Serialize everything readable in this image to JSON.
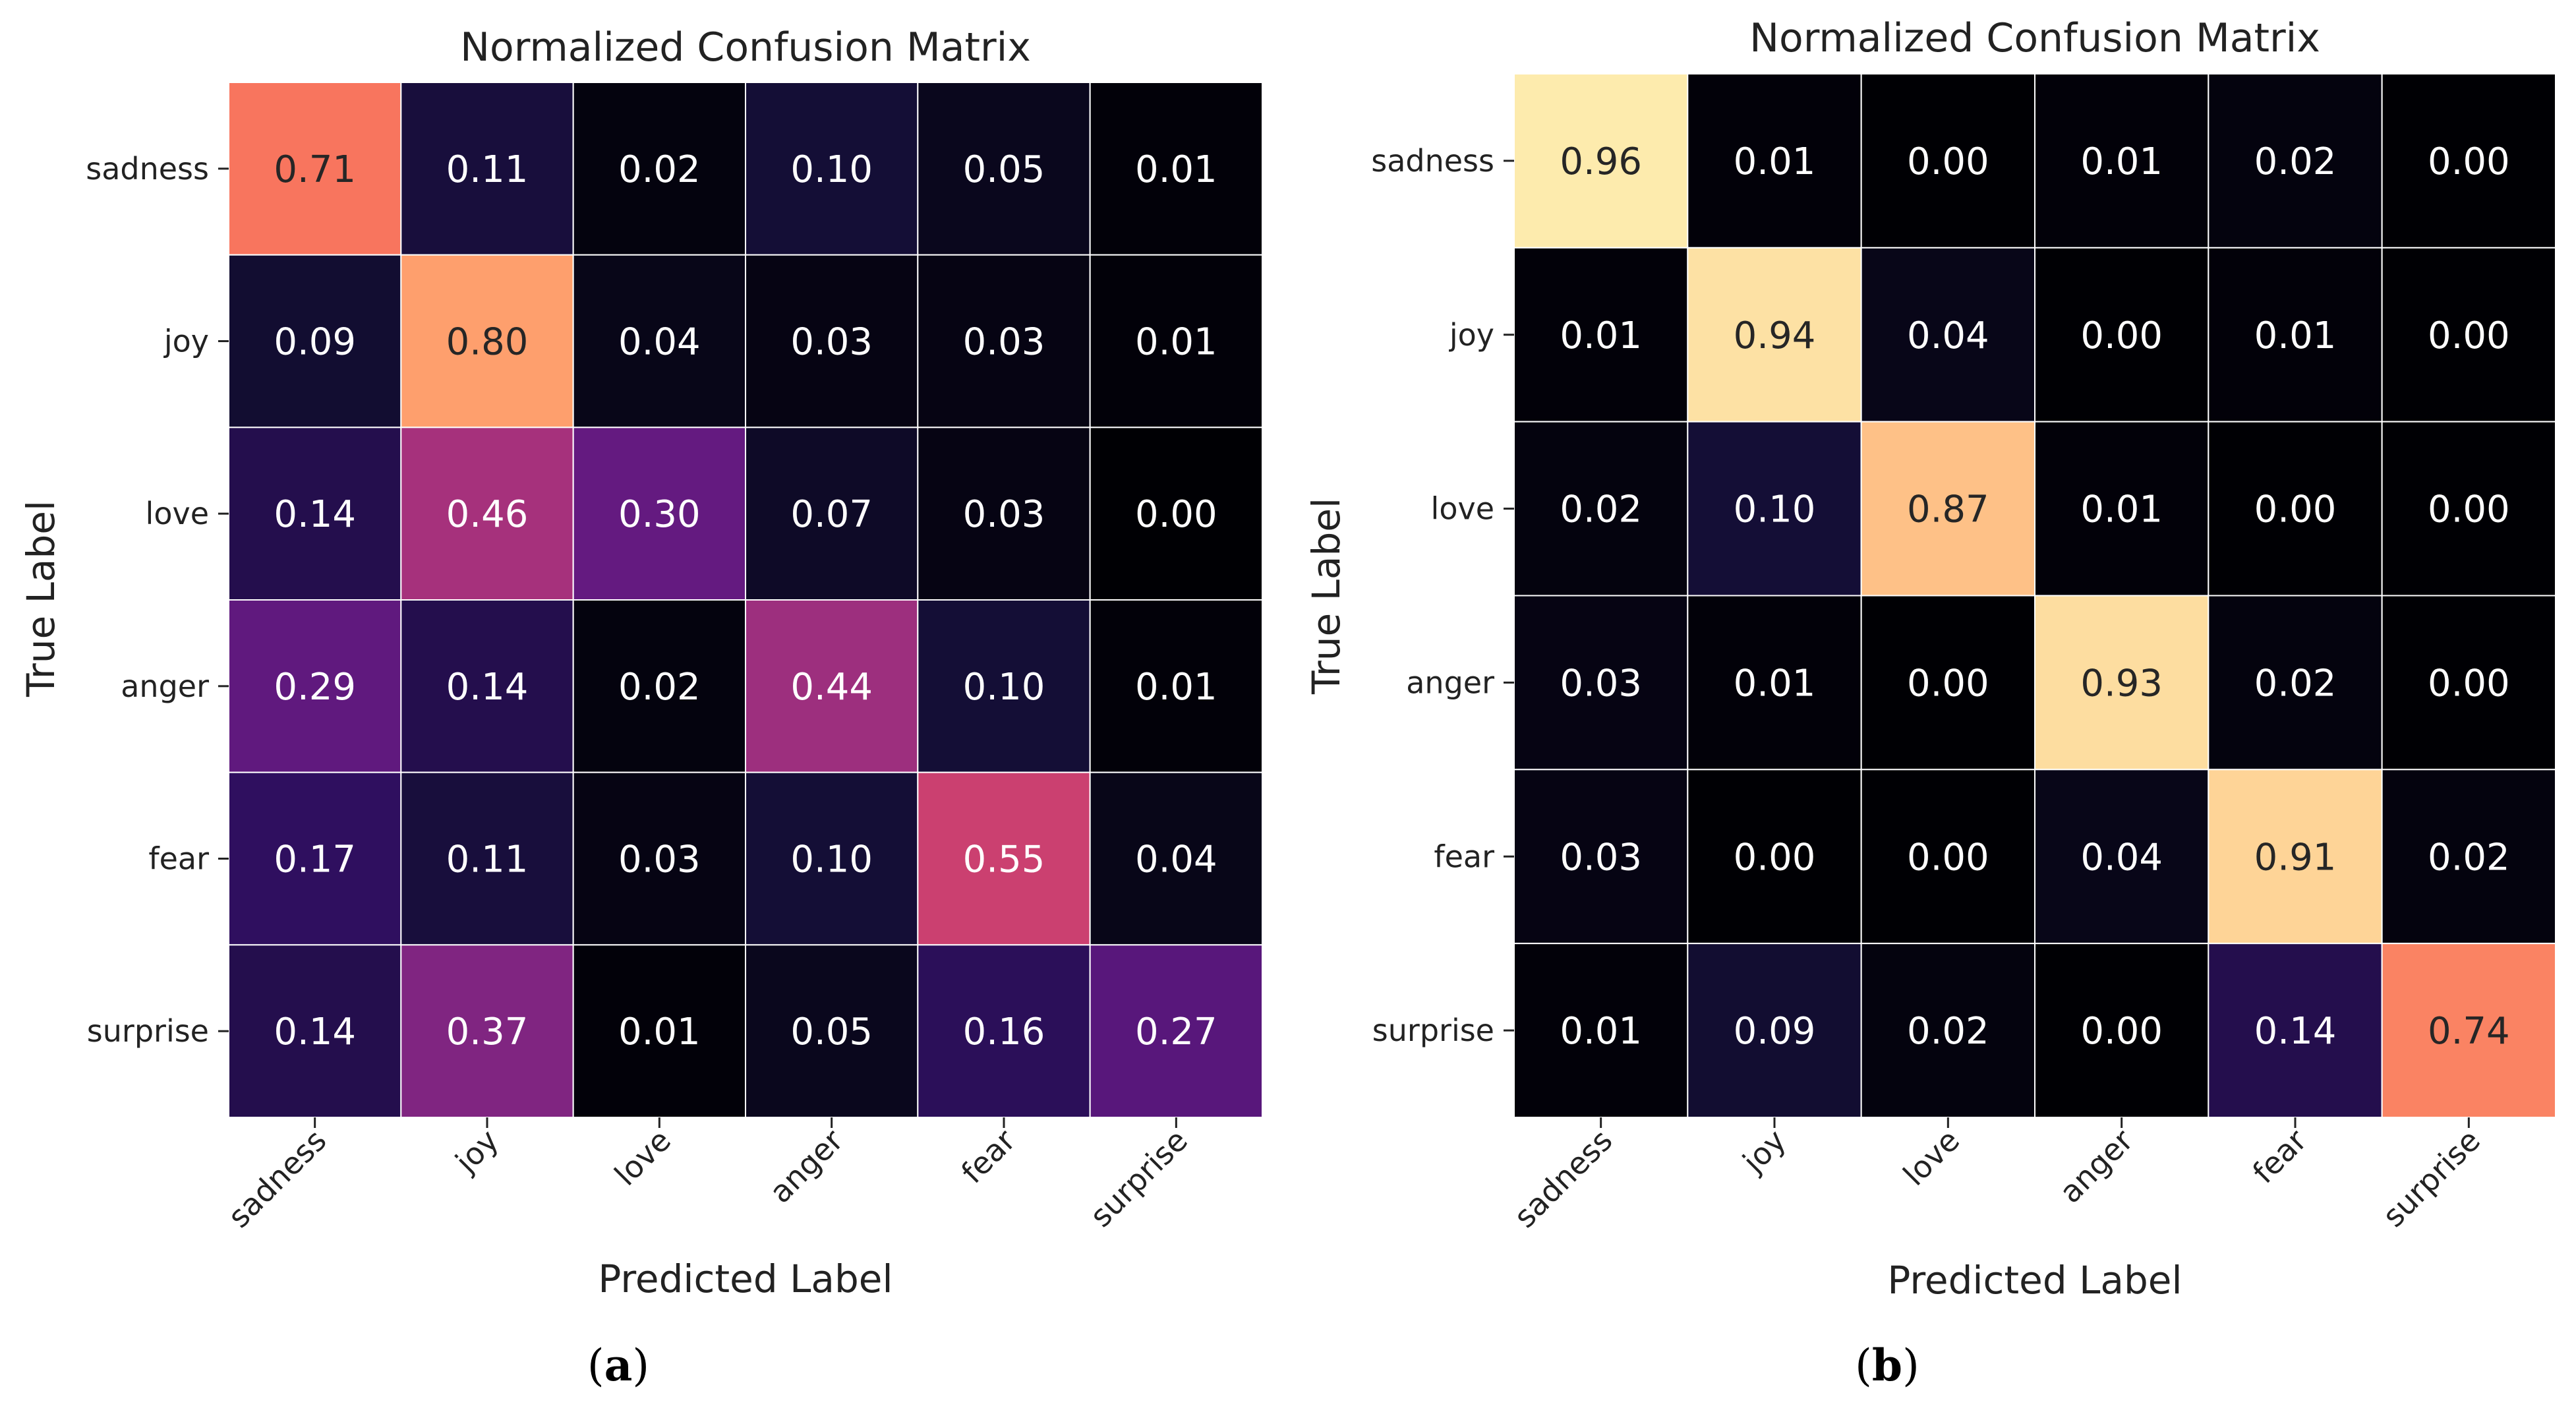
{
  "figure": {
    "panel_labels": [
      {
        "open": "(",
        "letter": "a",
        "close": ")"
      },
      {
        "open": "(",
        "letter": "b",
        "close": ")"
      }
    ]
  },
  "chart_data": [
    {
      "type": "heatmap",
      "title": "Normalized Confusion Matrix",
      "xlabel": "Predicted Label",
      "ylabel": "True Label",
      "x_categories": [
        "sadness",
        "joy",
        "love",
        "anger",
        "fear",
        "surprise"
      ],
      "y_categories": [
        "sadness",
        "joy",
        "love",
        "anger",
        "fear",
        "surprise"
      ],
      "colormap": "magma",
      "value_range": [
        0,
        1
      ],
      "values": [
        [
          0.71,
          0.11,
          0.02,
          0.1,
          0.05,
          0.01
        ],
        [
          0.09,
          0.8,
          0.04,
          0.03,
          0.03,
          0.01
        ],
        [
          0.14,
          0.46,
          0.3,
          0.07,
          0.03,
          0.0
        ],
        [
          0.29,
          0.14,
          0.02,
          0.44,
          0.1,
          0.01
        ],
        [
          0.17,
          0.11,
          0.03,
          0.1,
          0.55,
          0.04
        ],
        [
          0.14,
          0.37,
          0.01,
          0.05,
          0.16,
          0.27
        ]
      ]
    },
    {
      "type": "heatmap",
      "title": "Normalized Confusion Matrix",
      "xlabel": "Predicted Label",
      "ylabel": "True Label",
      "x_categories": [
        "sadness",
        "joy",
        "love",
        "anger",
        "fear",
        "surprise"
      ],
      "y_categories": [
        "sadness",
        "joy",
        "love",
        "anger",
        "fear",
        "surprise"
      ],
      "colormap": "magma",
      "value_range": [
        0,
        1
      ],
      "values": [
        [
          0.96,
          0.01,
          0.0,
          0.01,
          0.02,
          0.0
        ],
        [
          0.01,
          0.94,
          0.04,
          0.0,
          0.01,
          0.0
        ],
        [
          0.02,
          0.1,
          0.87,
          0.01,
          0.0,
          0.0
        ],
        [
          0.03,
          0.01,
          0.0,
          0.93,
          0.02,
          0.0
        ],
        [
          0.03,
          0.0,
          0.0,
          0.04,
          0.91,
          0.02
        ],
        [
          0.01,
          0.09,
          0.02,
          0.0,
          0.14,
          0.74
        ]
      ]
    }
  ]
}
